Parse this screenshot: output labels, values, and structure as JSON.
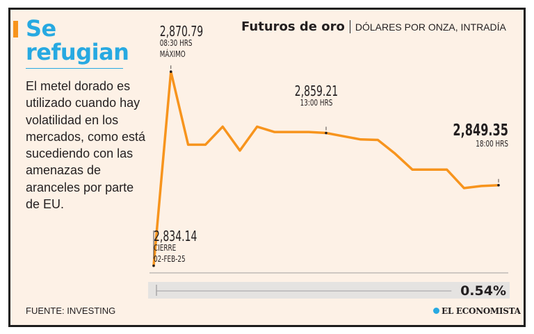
{
  "headline": "Se refugian",
  "description": "El metel dorado es utilizado cuando hay volatilidad en los mercados, como está sucediendo con las amenazas de aranceles por parte de EU.",
  "chart_title": "Futuros de oro",
  "chart_subtitle": "DÓLARES POR ONZA, INTRADÍA",
  "source": "FUENTE: INVESTING",
  "publisher": "EL ECONOMISTA",
  "colors": {
    "line": "#f7941d",
    "accent": "#f7941d",
    "headline": "#27a9e1",
    "text": "#231f20",
    "background": "#fdf1e6"
  },
  "chart_data": {
    "type": "line",
    "title": "Futuros de oro",
    "subtitle": "DÓLARES POR ONZA, INTRADÍA",
    "xlabel": "",
    "ylabel": "",
    "ylim": [
      2832,
      2872
    ],
    "values": [
      2834.14,
      2870.79,
      2857.0,
      2857.0,
      2860.4,
      2855.9,
      2860.4,
      2859.4,
      2859.4,
      2859.4,
      2859.21,
      2858.6,
      2858.0,
      2857.9,
      2855.3,
      2852.3,
      2852.3,
      2852.3,
      2848.8,
      2849.2,
      2849.35
    ],
    "annotations": [
      {
        "index": 0,
        "value": "2,834.14",
        "lines": [
          "CIERRE",
          "02-FEB-25"
        ]
      },
      {
        "index": 1,
        "value": "2,870.79",
        "lines": [
          "08:30 HRS",
          "MÁXIMO"
        ]
      },
      {
        "index": 10,
        "value": "2,859.21",
        "lines": [
          "13:00 HRS"
        ]
      },
      {
        "index": 20,
        "value": "2,849.35",
        "lines": [
          "18:00 HRS"
        ]
      }
    ],
    "change": {
      "label": "0.54%",
      "value": 0.54,
      "scale_max": 0.56
    }
  }
}
